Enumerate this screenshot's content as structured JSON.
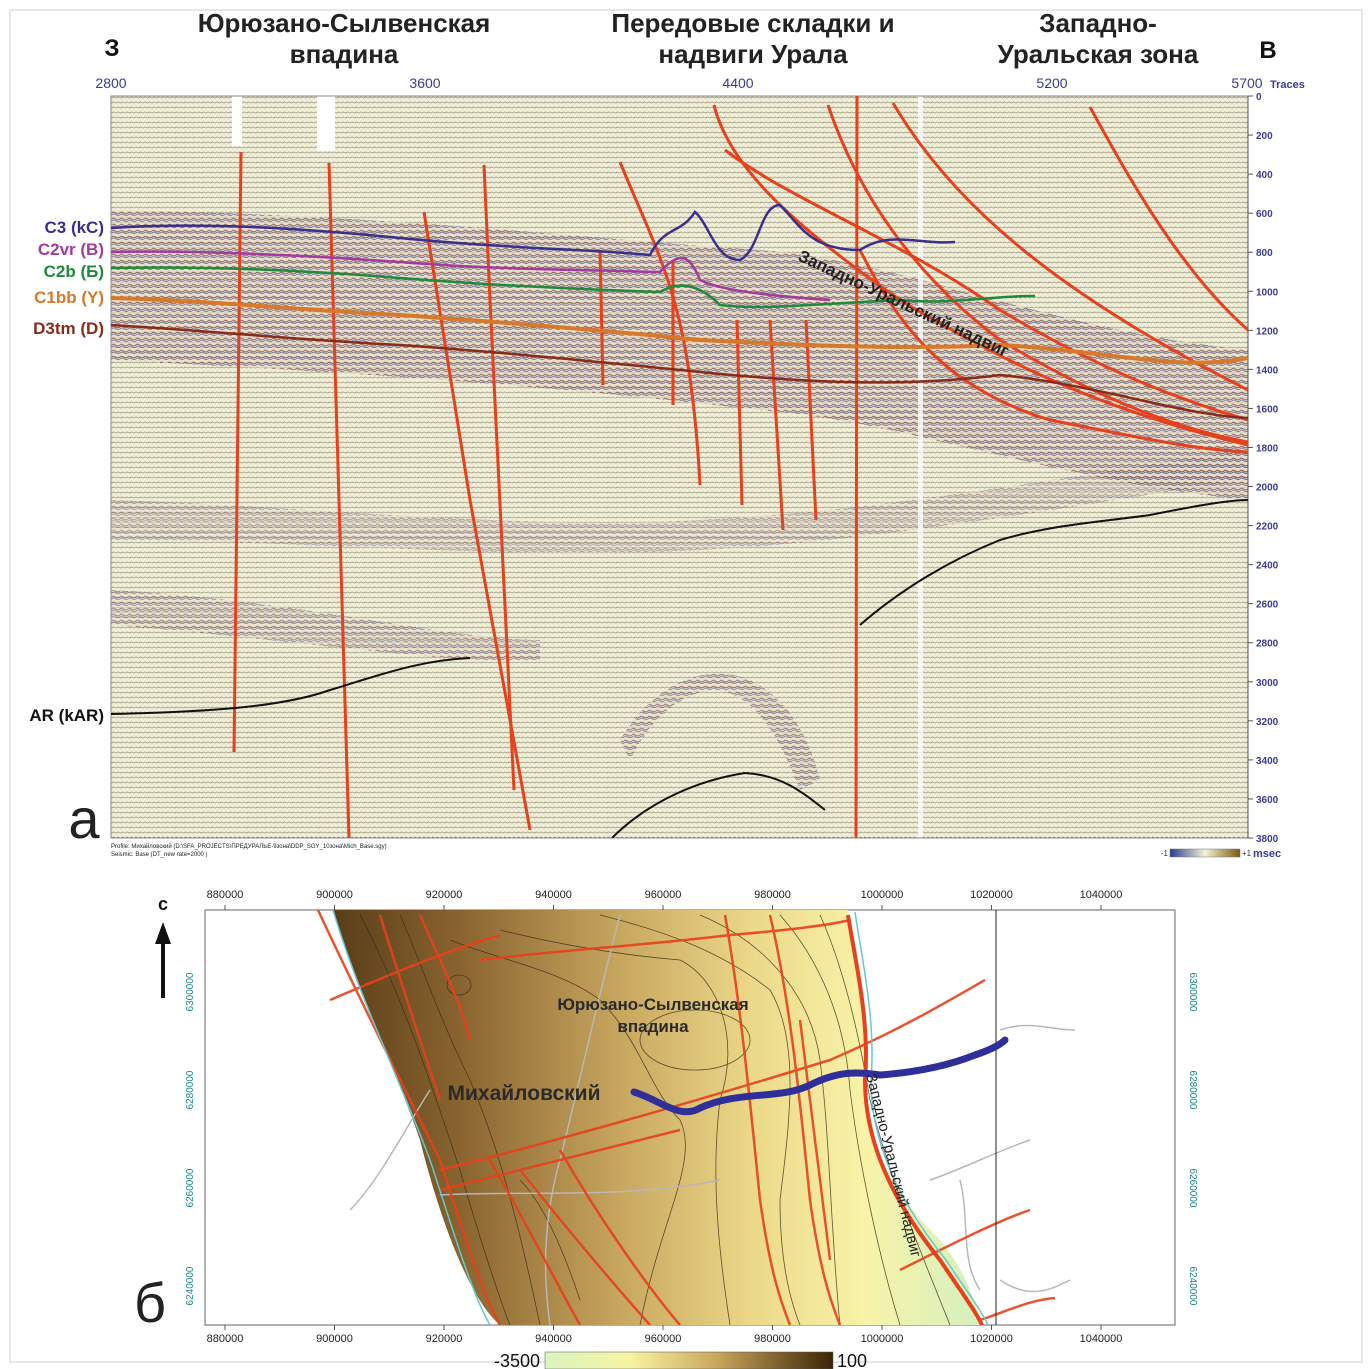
{
  "seismic": {
    "west_label": "З",
    "east_label": "В",
    "zone_labels": [
      [
        "Юрюзано-Сылвенская",
        "впадина"
      ],
      [
        "Передовые складки и",
        "надвиги Урала"
      ],
      [
        "Западно-",
        "Уральская зона"
      ]
    ],
    "trace_ticks": [
      "2800",
      "3600",
      "4400",
      "5200",
      "5700"
    ],
    "traces_label": "Traces",
    "time_ticks": [
      "0",
      "200",
      "400",
      "600",
      "800",
      "1000",
      "1200",
      "1400",
      "1600",
      "1800",
      "2000",
      "2200",
      "2400",
      "2600",
      "2800",
      "3000",
      "3200",
      "3400",
      "3600",
      "3800"
    ],
    "time_unit": "msec",
    "horizons": [
      {
        "label": "C3 (kC)",
        "color": "#3a2f8c"
      },
      {
        "label": "C2vr (B)",
        "color": "#a53a9e"
      },
      {
        "label": "C2b (Б)",
        "color": "#1f8a3c"
      },
      {
        "label": "C1bb (Y)",
        "color": "#d8782a"
      },
      {
        "label": "D3tm (D)",
        "color": "#8a2a1a"
      },
      {
        "label": "AR (kAR)",
        "color": "#111111"
      }
    ],
    "thrust_label": "Западно-Уральский надвиг",
    "panel_letter": "а",
    "profile_line": "Profile: Михайловский (D:\\SFA_PROJECTS\\ПРЕДУРАЛЬЕ-9зона\\DDP_SGY_10зона\\Mich_Base.sgy)",
    "seismic_line": "Seismic: Base (DT_new rate=2000 )",
    "colorbar_min": "-1",
    "colorbar_max": "+1",
    "fault_color": "#e8401c"
  },
  "map": {
    "north_label": "с",
    "x_ticks": [
      "880000",
      "900000",
      "920000",
      "940000",
      "960000",
      "980000",
      "1000000",
      "1020000",
      "1040000"
    ],
    "y_ticks": [
      "6300000",
      "6280000",
      "6260000",
      "6240000"
    ],
    "basin_label": [
      "Юрюзано-Сылвенская",
      "впадина"
    ],
    "profile_name": "Михайловский",
    "thrust_label": "Западно-Уральский надвиг",
    "panel_letter": "б",
    "scale_min": "-3500",
    "scale_max": "100",
    "profile_color": "#2f2f9a",
    "fault_color": "#e8401c"
  }
}
